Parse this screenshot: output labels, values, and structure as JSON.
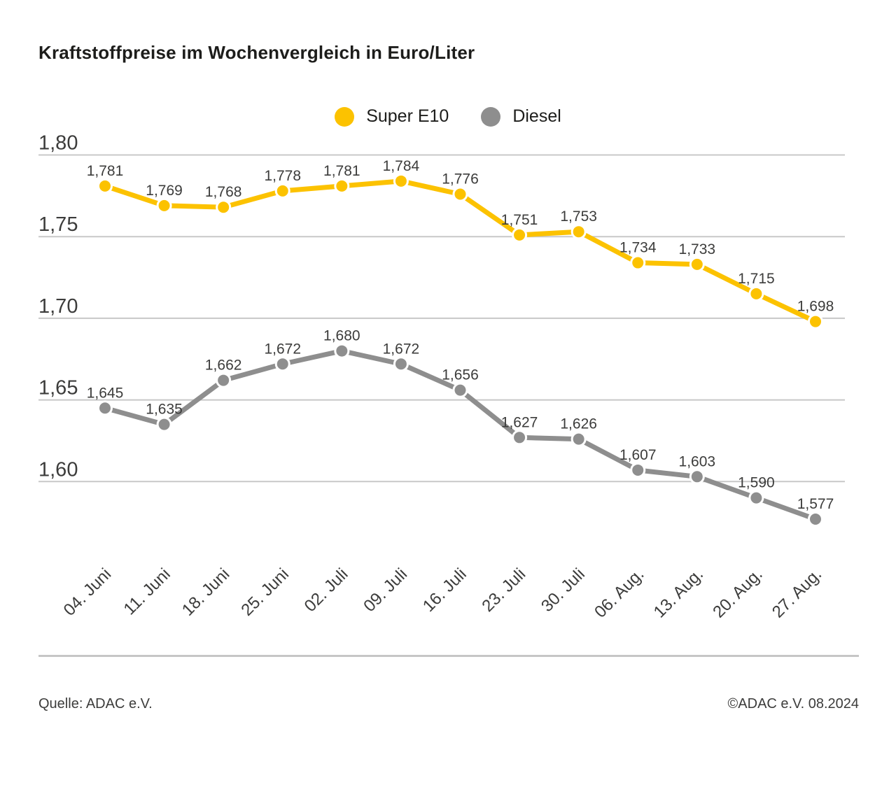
{
  "title": "Kraftstoffpreise im Wochenvergleich in Euro/Liter",
  "legend": [
    {
      "label": "Super E10",
      "color": "#FCC200"
    },
    {
      "label": "Diesel",
      "color": "#8E8E8E"
    }
  ],
  "footer": {
    "source": "Quelle: ADAC e.V.",
    "copyright": "©ADAC e.V. 08.2024"
  },
  "chart_data": {
    "type": "line",
    "title": "Kraftstoffpreise im Wochenvergleich in Euro/Liter",
    "categories": [
      "04. Juni",
      "11. Juni",
      "18. Juni",
      "25. Juni",
      "02. Juli",
      "09. Juli",
      "16. Juli",
      "23. Juli",
      "30. Juli",
      "06. Aug.",
      "13. Aug.",
      "20. Aug.",
      "27. Aug."
    ],
    "series": [
      {
        "name": "Super E10",
        "color": "#FCC200",
        "values": [
          1.781,
          1.769,
          1.768,
          1.778,
          1.781,
          1.784,
          1.776,
          1.751,
          1.753,
          1.734,
          1.733,
          1.715,
          1.698
        ]
      },
      {
        "name": "Diesel",
        "color": "#8E8E8E",
        "values": [
          1.645,
          1.635,
          1.662,
          1.672,
          1.68,
          1.672,
          1.656,
          1.627,
          1.626,
          1.607,
          1.603,
          1.59,
          1.577
        ]
      }
    ],
    "xlabel": "",
    "ylabel": "Euro/Liter",
    "yticks": [
      1.8,
      1.75,
      1.7,
      1.65,
      1.6
    ],
    "ylim": [
      1.56,
      1.81
    ],
    "grid": true,
    "value_labels": true,
    "decimal_separator": ",",
    "legend_position": "top-center",
    "gridline_color": "#C8C8C8",
    "label_color": "#3c3c3b"
  }
}
